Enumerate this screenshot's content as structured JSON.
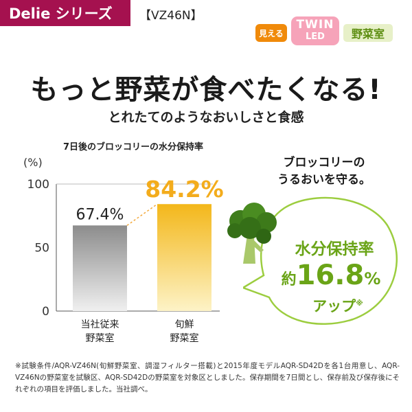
{
  "header": {
    "series_label": "Delie シリーズ",
    "model": "【VZ46N】"
  },
  "led_badge": {
    "mieru": "見える",
    "twin": "TWIN",
    "led": "LED",
    "yasaishitsu": "野菜室"
  },
  "headline": "もっと野菜が食べたくなる!",
  "subheadline": "とれたてのようなおいしさと食感",
  "callout": {
    "heading_line1": "ブロッコリーの",
    "heading_line2": "うるおいを守る。",
    "line1": "水分保持率",
    "prefix": "約",
    "value": "16.8",
    "unit": "%",
    "line3": "アップ",
    "mark": "※"
  },
  "colors": {
    "brand": "#a5114f",
    "accent_orange": "#f5a623",
    "green": "#6aa417",
    "bar_gray": "#8f8f8f",
    "bar_yellow": "#f3bf1e"
  },
  "chart_data": {
    "type": "bar",
    "title": "7日後のブロッコリーの水分保持率",
    "ylabel": "(%)",
    "ylim": [
      0,
      100
    ],
    "yticks": [
      0,
      50,
      100
    ],
    "grid": false,
    "categories": [
      {
        "line1": "当社従来",
        "line2": "野菜室"
      },
      {
        "line1": "旬鮮",
        "line2": "野菜室"
      }
    ],
    "values": [
      67.4,
      84.2
    ],
    "data_labels": [
      "67.4%",
      "84.2%"
    ]
  },
  "footnote": "※試験条件/AQR-VZ46N(旬鮮野菜室、調湿フィルター搭載)と2015年度モデルAQR-SD42Dを各1台用意し、AQR-VZ46Nの野菜室を試験区、AQR-SD42Dの野菜室を対象区としました。保存期間を7日間とし、保存前及び保存後にそれぞれの項目を評価しました。当社調べ。"
}
